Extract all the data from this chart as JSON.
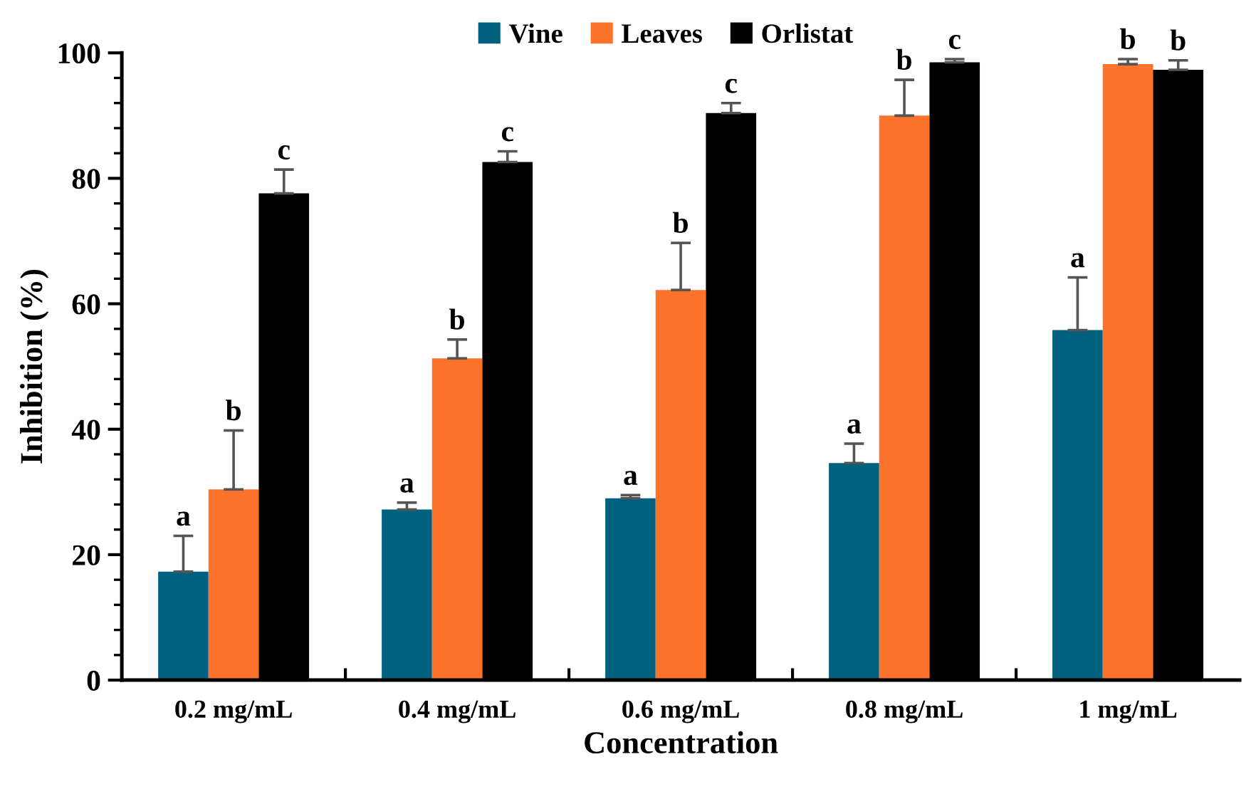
{
  "chart_data": {
    "type": "bar",
    "xlabel": "Concentration",
    "ylabel": "Inhibition (%)",
    "categories": [
      "0.2 mg/mL",
      "0.4 mg/mL",
      "0.6 mg/mL",
      "0.8 mg/mL",
      "1 mg/mL"
    ],
    "series": [
      {
        "name": "Vine",
        "color": "#02607f",
        "values": [
          17.3,
          27.2,
          29.0,
          34.6,
          55.8
        ],
        "errors": [
          [
            17.3,
            23.0
          ],
          [
            27.2,
            28.3
          ],
          [
            29.0,
            29.5
          ],
          [
            34.6,
            37.7
          ],
          [
            55.8,
            64.2
          ]
        ]
      },
      {
        "name": "Leaves",
        "color": "#fd732b",
        "values": [
          30.4,
          51.3,
          62.2,
          90.0,
          98.2
        ],
        "errors": [
          [
            30.4,
            39.8
          ],
          [
            51.3,
            54.3
          ],
          [
            62.2,
            69.7
          ],
          [
            90.0,
            95.7
          ],
          [
            98.2,
            99.0
          ]
        ]
      },
      {
        "name": "Orlistat",
        "color": "#000000",
        "values": [
          77.6,
          82.6,
          90.4,
          98.5,
          97.3
        ],
        "errors": [
          [
            77.6,
            81.4
          ],
          [
            82.6,
            84.3
          ],
          [
            90.4,
            92.0
          ],
          [
            98.5,
            99.0
          ],
          [
            97.3,
            98.8
          ]
        ]
      }
    ],
    "ylim": [
      0,
      100
    ],
    "yticks": [
      0,
      {
        "value": 4,
        "label": null
      },
      {
        "value": 8,
        "label": null
      },
      {
        "value": 12,
        "label": null
      },
      {
        "value": 16,
        "label": null
      },
      20,
      {
        "value": 24,
        "label": null
      },
      {
        "value": 28,
        "label": null
      },
      {
        "value": 32,
        "label": null
      },
      {
        "value": 36,
        "label": null
      },
      40,
      {
        "value": 44,
        "label": null
      },
      {
        "value": 48,
        "label": null
      },
      {
        "value": 52,
        "label": null
      },
      {
        "value": 56,
        "label": null
      },
      60,
      {
        "value": 64,
        "label": null
      },
      {
        "value": 68,
        "label": null
      },
      {
        "value": 72,
        "label": null
      },
      {
        "value": 76,
        "label": null
      },
      80,
      {
        "value": 84,
        "label": null
      },
      {
        "value": 88,
        "label": null
      },
      {
        "value": 92,
        "label": null
      },
      {
        "value": 96,
        "label": null
      },
      100
    ],
    "grid": false,
    "legend": "top",
    "annotations": [
      "a",
      "b",
      "c",
      "a",
      "b",
      "c",
      "a",
      "b",
      "c",
      "a",
      "b",
      "c",
      "a",
      "b",
      "b"
    ]
  }
}
